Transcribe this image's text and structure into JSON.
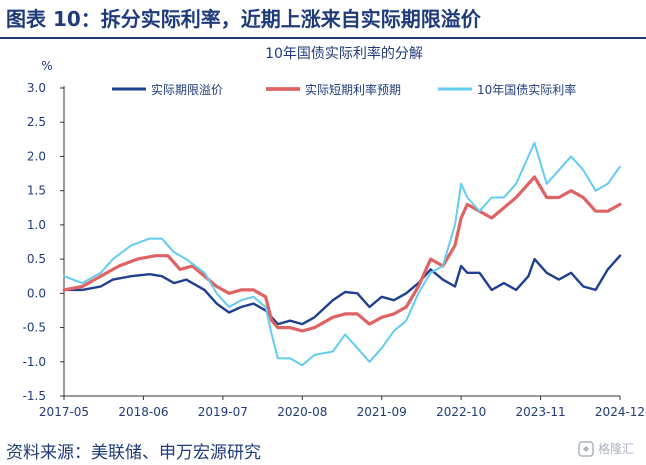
{
  "figure": {
    "title": "图表 10：拆分实际利率，近期上涨来自实际期限溢价",
    "source": "资料来源：美联储、申万宏源研究",
    "watermark": "格隆汇"
  },
  "chart_data": {
    "type": "line",
    "title": "10年国债实际利率的分解",
    "ylabel": "%",
    "ylim": [
      -1.5,
      3.0
    ],
    "yticks": [
      -1.5,
      -1.0,
      -0.5,
      0.0,
      0.5,
      1.0,
      1.5,
      2.0,
      2.5,
      3.0
    ],
    "ytick_labels": [
      "-1.5",
      "-1.0",
      "-0.5",
      "0.0",
      "0.5",
      "1.0",
      "1.5",
      "2.0",
      "2.5",
      "3.0"
    ],
    "xlim": [
      "2017-05",
      "2024-12"
    ],
    "xticks": [
      "2017-05",
      "2018-06",
      "2019-07",
      "2020-08",
      "2021-09",
      "2022-10",
      "2023-11",
      "2024-12"
    ],
    "grid": false,
    "legend": "top",
    "series": [
      {
        "name": "实际期限溢价",
        "color": "#1f3f8f",
        "width": 2.4,
        "points": [
          [
            "2017-05",
            0.05
          ],
          [
            "2017-08",
            0.05
          ],
          [
            "2017-11",
            0.1
          ],
          [
            "2018-01",
            0.2
          ],
          [
            "2018-04",
            0.25
          ],
          [
            "2018-07",
            0.28
          ],
          [
            "2018-09",
            0.25
          ],
          [
            "2018-11",
            0.15
          ],
          [
            "2019-01",
            0.2
          ],
          [
            "2019-04",
            0.05
          ],
          [
            "2019-06",
            -0.15
          ],
          [
            "2019-08",
            -0.28
          ],
          [
            "2019-10",
            -0.2
          ],
          [
            "2019-12",
            -0.15
          ],
          [
            "2020-02",
            -0.25
          ],
          [
            "2020-03",
            -0.35
          ],
          [
            "2020-04",
            -0.45
          ],
          [
            "2020-06",
            -0.4
          ],
          [
            "2020-08",
            -0.45
          ],
          [
            "2020-10",
            -0.35
          ],
          [
            "2021-01",
            -0.1
          ],
          [
            "2021-03",
            0.02
          ],
          [
            "2021-05",
            0.0
          ],
          [
            "2021-07",
            -0.2
          ],
          [
            "2021-09",
            -0.05
          ],
          [
            "2021-11",
            -0.1
          ],
          [
            "2022-01",
            0.0
          ],
          [
            "2022-03",
            0.15
          ],
          [
            "2022-05",
            0.35
          ],
          [
            "2022-07",
            0.2
          ],
          [
            "2022-09",
            0.1
          ],
          [
            "2022-10",
            0.4
          ],
          [
            "2022-11",
            0.3
          ],
          [
            "2023-01",
            0.3
          ],
          [
            "2023-03",
            0.05
          ],
          [
            "2023-05",
            0.15
          ],
          [
            "2023-07",
            0.05
          ],
          [
            "2023-09",
            0.25
          ],
          [
            "2023-10",
            0.5
          ],
          [
            "2023-12",
            0.3
          ],
          [
            "2024-02",
            0.2
          ],
          [
            "2024-04",
            0.3
          ],
          [
            "2024-06",
            0.1
          ],
          [
            "2024-08",
            0.05
          ],
          [
            "2024-10",
            0.35
          ],
          [
            "2024-12",
            0.55
          ]
        ]
      },
      {
        "name": "实际短期利率预期",
        "color": "#e06363",
        "width": 3.2,
        "points": [
          [
            "2017-05",
            0.05
          ],
          [
            "2017-08",
            0.1
          ],
          [
            "2017-11",
            0.25
          ],
          [
            "2018-02",
            0.4
          ],
          [
            "2018-05",
            0.5
          ],
          [
            "2018-08",
            0.55
          ],
          [
            "2018-10",
            0.55
          ],
          [
            "2018-12",
            0.35
          ],
          [
            "2019-02",
            0.4
          ],
          [
            "2019-04",
            0.25
          ],
          [
            "2019-06",
            0.1
          ],
          [
            "2019-08",
            0.0
          ],
          [
            "2019-10",
            0.05
          ],
          [
            "2019-12",
            0.05
          ],
          [
            "2020-02",
            -0.05
          ],
          [
            "2020-03",
            -0.4
          ],
          [
            "2020-04",
            -0.5
          ],
          [
            "2020-06",
            -0.5
          ],
          [
            "2020-08",
            -0.55
          ],
          [
            "2020-10",
            -0.5
          ],
          [
            "2021-01",
            -0.35
          ],
          [
            "2021-03",
            -0.3
          ],
          [
            "2021-05",
            -0.3
          ],
          [
            "2021-07",
            -0.45
          ],
          [
            "2021-09",
            -0.35
          ],
          [
            "2021-11",
            -0.3
          ],
          [
            "2022-01",
            -0.2
          ],
          [
            "2022-03",
            0.1
          ],
          [
            "2022-05",
            0.5
          ],
          [
            "2022-07",
            0.4
          ],
          [
            "2022-09",
            0.7
          ],
          [
            "2022-10",
            1.1
          ],
          [
            "2022-11",
            1.3
          ],
          [
            "2023-01",
            1.2
          ],
          [
            "2023-03",
            1.1
          ],
          [
            "2023-05",
            1.25
          ],
          [
            "2023-07",
            1.4
          ],
          [
            "2023-09",
            1.6
          ],
          [
            "2023-10",
            1.7
          ],
          [
            "2023-12",
            1.4
          ],
          [
            "2024-02",
            1.4
          ],
          [
            "2024-04",
            1.5
          ],
          [
            "2024-06",
            1.4
          ],
          [
            "2024-08",
            1.2
          ],
          [
            "2024-10",
            1.2
          ],
          [
            "2024-12",
            1.3
          ]
        ]
      },
      {
        "name": "10年国债实际利率",
        "color": "#63ccf0",
        "width": 2.0,
        "points": [
          [
            "2017-05",
            0.25
          ],
          [
            "2017-08",
            0.15
          ],
          [
            "2017-11",
            0.3
          ],
          [
            "2018-01",
            0.5
          ],
          [
            "2018-04",
            0.7
          ],
          [
            "2018-07",
            0.8
          ],
          [
            "2018-09",
            0.8
          ],
          [
            "2018-11",
            0.6
          ],
          [
            "2019-01",
            0.5
          ],
          [
            "2019-04",
            0.3
          ],
          [
            "2019-06",
            0.0
          ],
          [
            "2019-08",
            -0.2
          ],
          [
            "2019-10",
            -0.1
          ],
          [
            "2019-12",
            -0.05
          ],
          [
            "2020-02",
            -0.2
          ],
          [
            "2020-03",
            -0.6
          ],
          [
            "2020-04",
            -0.95
          ],
          [
            "2020-06",
            -0.95
          ],
          [
            "2020-08",
            -1.05
          ],
          [
            "2020-10",
            -0.9
          ],
          [
            "2021-01",
            -0.85
          ],
          [
            "2021-03",
            -0.6
          ],
          [
            "2021-05",
            -0.8
          ],
          [
            "2021-07",
            -1.0
          ],
          [
            "2021-09",
            -0.8
          ],
          [
            "2021-11",
            -0.55
          ],
          [
            "2022-01",
            -0.4
          ],
          [
            "2022-03",
            0.0
          ],
          [
            "2022-05",
            0.3
          ],
          [
            "2022-07",
            0.4
          ],
          [
            "2022-09",
            1.0
          ],
          [
            "2022-10",
            1.6
          ],
          [
            "2022-11",
            1.4
          ],
          [
            "2023-01",
            1.2
          ],
          [
            "2023-03",
            1.4
          ],
          [
            "2023-05",
            1.4
          ],
          [
            "2023-07",
            1.6
          ],
          [
            "2023-09",
            2.0
          ],
          [
            "2023-10",
            2.2
          ],
          [
            "2023-12",
            1.6
          ],
          [
            "2024-02",
            1.8
          ],
          [
            "2024-04",
            2.0
          ],
          [
            "2024-06",
            1.8
          ],
          [
            "2024-08",
            1.5
          ],
          [
            "2024-10",
            1.6
          ],
          [
            "2024-12",
            1.85
          ]
        ]
      }
    ]
  }
}
